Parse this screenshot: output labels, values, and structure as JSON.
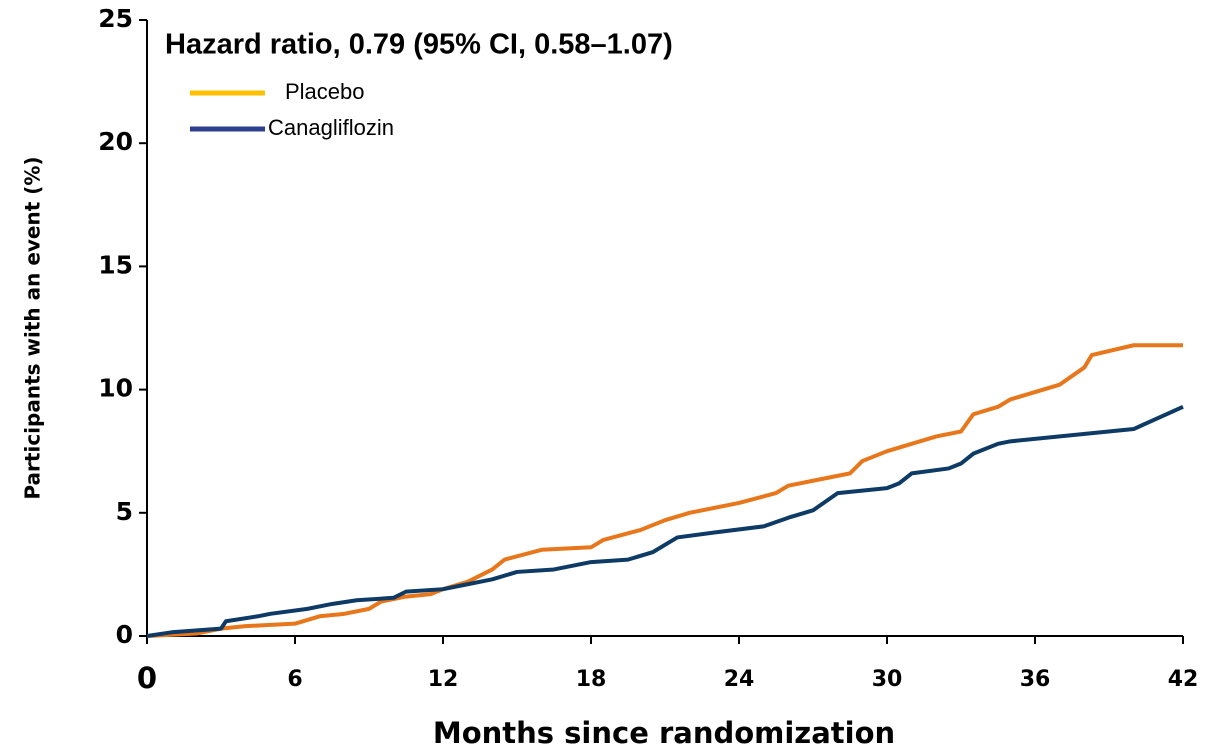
{
  "chart_data": {
    "type": "line",
    "annotation": "Hazard ratio, 0.79 (95% CI, 0.58–1.07)",
    "x_label": "Months since randomization",
    "y_label": "Participants with an event (%)",
    "xlim": [
      0,
      42
    ],
    "xticks": [
      0,
      6,
      12,
      18,
      24,
      30,
      36,
      42
    ],
    "ylim": [
      0,
      25
    ],
    "yticks": [
      0,
      5,
      10,
      15,
      20,
      25
    ],
    "series": [
      {
        "name": "Placebo",
        "color": "#e8761b",
        "legend_color": "#ffc000",
        "x": [
          0,
          2,
          3,
          4,
          6,
          7,
          8,
          9,
          9.5,
          10.5,
          11.5,
          12,
          13,
          14,
          14.5,
          16,
          18,
          18.5,
          20,
          21,
          22,
          24,
          25.5,
          26,
          27,
          28.5,
          29,
          30,
          31,
          32,
          33,
          33.5,
          34.5,
          35,
          37,
          38,
          38.3,
          40,
          42
        ],
        "values": [
          0,
          0.1,
          0.3,
          0.4,
          0.5,
          0.8,
          0.9,
          1.1,
          1.4,
          1.6,
          1.7,
          1.9,
          2.2,
          2.7,
          3.1,
          3.5,
          3.6,
          3.9,
          4.3,
          4.7,
          5.0,
          5.4,
          5.8,
          6.1,
          6.3,
          6.6,
          7.1,
          7.5,
          7.8,
          8.1,
          8.3,
          9.0,
          9.3,
          9.6,
          10.2,
          10.9,
          11.4,
          11.8,
          11.8
        ]
      },
      {
        "name": "Canagliflozin",
        "color": "#0e3a66",
        "legend_color": "#2e3f8f",
        "x": [
          0,
          1,
          3,
          3.2,
          4.5,
          5,
          6.5,
          7.5,
          8.5,
          10,
          10.5,
          12,
          13,
          14,
          15,
          16.5,
          18,
          19.5,
          20.5,
          21,
          21.5,
          23,
          25,
          26,
          27,
          28,
          30,
          30.5,
          31,
          32.5,
          33,
          33.5,
          34.5,
          35,
          40,
          42
        ],
        "values": [
          0,
          0.15,
          0.3,
          0.6,
          0.8,
          0.9,
          1.1,
          1.3,
          1.45,
          1.55,
          1.8,
          1.9,
          2.1,
          2.3,
          2.6,
          2.7,
          3.0,
          3.1,
          3.4,
          3.7,
          4.0,
          4.2,
          4.45,
          4.8,
          5.1,
          5.8,
          6.0,
          6.2,
          6.6,
          6.8,
          7.0,
          7.4,
          7.8,
          7.9,
          8.4,
          9.3
        ]
      }
    ]
  }
}
